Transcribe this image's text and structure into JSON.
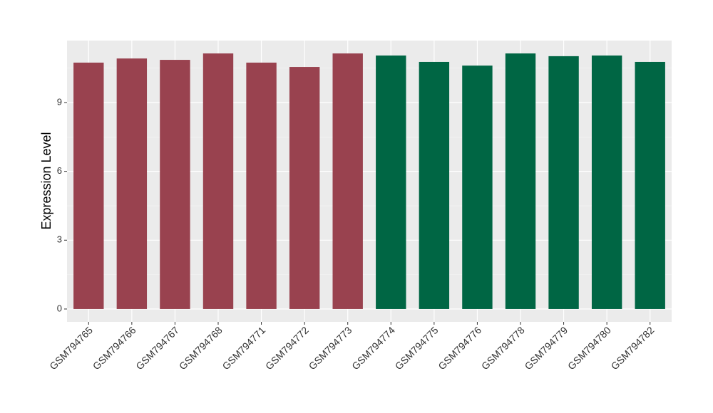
{
  "chart_data": {
    "type": "bar",
    "y_label": "Expression Level",
    "categories": [
      "GSM794765",
      "GSM794766",
      "GSM794767",
      "GSM794768",
      "GSM794771",
      "GSM794772",
      "GSM794773",
      "GSM794774",
      "GSM794775",
      "GSM794776",
      "GSM794778",
      "GSM794779",
      "GSM794780",
      "GSM794782"
    ],
    "values": [
      10.74,
      10.92,
      10.86,
      11.14,
      10.74,
      10.55,
      11.14,
      11.05,
      10.77,
      10.61,
      11.14,
      11.02,
      11.05,
      10.77
    ],
    "colors": [
      "#99424f",
      "#99424f",
      "#99424f",
      "#99424f",
      "#99424f",
      "#99424f",
      "#99424f",
      "#006644",
      "#006644",
      "#006644",
      "#006644",
      "#006644",
      "#006644",
      "#006644"
    ],
    "ylim": [
      -0.56,
      11.7
    ],
    "yticks": [
      0,
      3,
      6,
      9
    ],
    "minor_yticks": [
      1.5,
      4.5,
      7.5,
      10.5
    ],
    "grid": true
  }
}
